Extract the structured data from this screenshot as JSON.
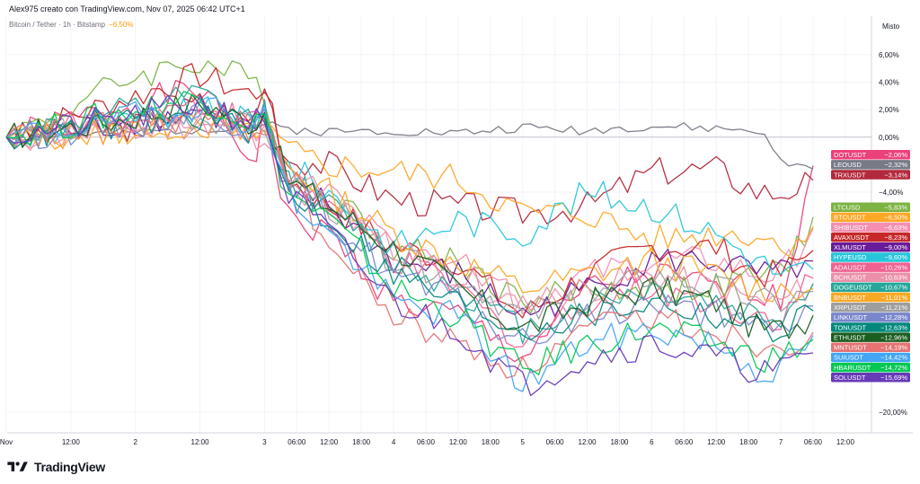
{
  "header": {
    "text": "Alex975 creato con TradingView.com, Nov 07, 2025 06:42 UTC+1"
  },
  "legend": {
    "symbol": "Bitcoin / Tether · 1h · Bitstamp",
    "change": "−6,50%"
  },
  "scale_mode": "Misto",
  "brand": {
    "name": "TradingView"
  },
  "chart_data": {
    "type": "line",
    "title": "",
    "xlabel": "",
    "ylabel": "",
    "ylim": [
      -21.5,
      8.8
    ],
    "grid": true,
    "x_ticks": [
      "Nov",
      "12:00",
      "2",
      "12:00",
      "3",
      "06:00",
      "12:00",
      "18:00",
      "4",
      "06:00",
      "12:00",
      "18:00",
      "5",
      "06:00",
      "12:00",
      "18:00",
      "6",
      "06:00",
      "12:00",
      "18:00",
      "7",
      "06:00",
      "12:00"
    ],
    "x_tick_hours": [
      0,
      12,
      24,
      36,
      48,
      54,
      60,
      66,
      72,
      78,
      84,
      90,
      96,
      102,
      108,
      114,
      120,
      126,
      132,
      138,
      144,
      150,
      156
    ],
    "y_ticks": [
      {
        "value": 6,
        "label": "6,00%"
      },
      {
        "value": 4,
        "label": "4,00%"
      },
      {
        "value": 2,
        "label": "2,00%"
      },
      {
        "value": 0,
        "label": "0,00%"
      },
      {
        "value": -4,
        "label": "−4,00%"
      },
      {
        "value": -20,
        "label": "−20,00%"
      }
    ],
    "hours_anchor": [
      0,
      24,
      36,
      46,
      48,
      52,
      60,
      72,
      84,
      96,
      108,
      120,
      132,
      140,
      144,
      150
    ],
    "series": [
      {
        "name": "DOTUSDT",
        "color": "#ec407a",
        "label": "−2,06%",
        "final": -2.06,
        "path": [
          0,
          2.5,
          3.5,
          -2,
          2,
          -6,
          -7,
          -12,
          -13,
          -16,
          -11,
          -10,
          -11,
          -11,
          -12,
          -2.06
        ]
      },
      {
        "name": "LEOUSD",
        "color": "#787b86",
        "label": "−2,32%",
        "final": -2.32,
        "path": [
          0,
          0.3,
          0.6,
          0.8,
          0.9,
          0.6,
          0.4,
          0.5,
          0.3,
          0.7,
          0.5,
          0.8,
          0.6,
          0.5,
          -1.8,
          -2.32
        ]
      },
      {
        "name": "TRXUSDT",
        "color": "#b2283c",
        "label": "−3,14%",
        "final": -3.14,
        "path": [
          0,
          0.8,
          2.5,
          1,
          4,
          -1.5,
          -2,
          -4.5,
          -5,
          -5.5,
          -5,
          -2.5,
          -2.3,
          -4,
          -4,
          -3.14
        ]
      },
      {
        "name": "LTCUSD",
        "color": "#7cb342",
        "label": "−5,83%",
        "final": -5.83,
        "path": [
          0,
          4.5,
          5.5,
          4,
          3.5,
          -3,
          -4,
          -8,
          -9,
          -12,
          -11,
          -11,
          -11,
          -10,
          -10,
          -5.83
        ]
      },
      {
        "name": "BTCUSDT",
        "color": "#ffa726",
        "label": "−6,50%",
        "final": -6.5,
        "path": [
          0,
          0.5,
          1,
          0.5,
          0.8,
          -1,
          -2,
          -2.5,
          -3,
          -5.5,
          -5.5,
          -7.5,
          -7,
          -7,
          -8,
          -6.5
        ]
      },
      {
        "name": "SHIBUSDT",
        "color": "#f48fb1",
        "label": "−6,63%",
        "final": -6.63,
        "path": [
          0,
          0.5,
          1,
          0.5,
          1,
          -3,
          -5,
          -8,
          -10,
          -12,
          -10,
          -9,
          -9,
          -10,
          -10,
          -6.63
        ]
      },
      {
        "name": "AVAXUSDT",
        "color": "#c62828",
        "label": "−8,23%",
        "final": -8.23,
        "path": [
          0,
          3,
          4.5,
          3,
          4,
          -3,
          -5,
          -8,
          -9,
          -13,
          -10,
          -8,
          -8,
          -10,
          -10,
          -8.23
        ]
      },
      {
        "name": "XLMUSDT",
        "color": "#6a1b9a",
        "label": "−9,00%",
        "final": -9.0,
        "path": [
          0,
          1,
          2,
          0.5,
          0.8,
          -3,
          -5,
          -9,
          -10,
          -13,
          -11,
          -9,
          -9,
          -10,
          -10,
          -9.0
        ]
      },
      {
        "name": "HYPEUSD",
        "color": "#26c6da",
        "label": "−9,60%",
        "final": -9.6,
        "path": [
          0,
          1,
          2,
          1,
          1.5,
          -2,
          -4,
          -8,
          -6,
          -7,
          -4,
          -5,
          -7,
          -9,
          -10,
          -9.6
        ]
      },
      {
        "name": "ADAUSDT",
        "color": "#f06292",
        "label": "−10,26%",
        "final": -10.26,
        "path": [
          0,
          1.5,
          2.5,
          1,
          1.5,
          -3,
          -5,
          -9,
          -11,
          -15,
          -12,
          -11,
          -12,
          -13,
          -13,
          -10.26
        ]
      },
      {
        "name": "BCHUSDT",
        "color": "#ec8fa8",
        "label": "−10,63%",
        "final": -10.63,
        "path": [
          0,
          0.5,
          1,
          0,
          0.5,
          -3,
          -4,
          -8,
          -9,
          -12,
          -11,
          -10,
          -11,
          -12,
          -12,
          -10.63
        ]
      },
      {
        "name": "DOGEUSDT",
        "color": "#26a69a",
        "label": "−10,67%",
        "final": -10.67,
        "path": [
          0,
          2,
          3,
          1,
          2,
          -3,
          -5,
          -9,
          -11,
          -14,
          -12,
          -11,
          -12,
          -13,
          -13,
          -10.67
        ]
      },
      {
        "name": "BNBUSDT",
        "color": "#f9a825",
        "label": "−11,01%",
        "final": -11.01,
        "path": [
          0,
          0.5,
          1,
          0,
          0.5,
          -2,
          -4,
          -7,
          -9,
          -11,
          -10,
          -9,
          -10,
          -11,
          -11,
          -11.01
        ]
      },
      {
        "name": "XRPUSDT",
        "color": "#9e9e9e",
        "label": "−11,21%",
        "final": -11.21,
        "path": [
          0,
          1,
          1.5,
          0.5,
          1,
          -3,
          -5,
          -9,
          -10,
          -13,
          -12,
          -10,
          -11,
          -12,
          -12,
          -11.21
        ]
      },
      {
        "name": "LINKUSDT",
        "color": "#7986cb",
        "label": "−12,28%",
        "final": -12.28,
        "path": [
          0,
          1,
          2,
          0.5,
          1,
          -4,
          -6,
          -10,
          -12,
          -15,
          -13,
          -12,
          -13,
          -14,
          -14,
          -12.28
        ]
      },
      {
        "name": "TONUSDT",
        "color": "#00897b",
        "label": "−12,63%",
        "final": -12.63,
        "path": [
          0,
          1,
          1.5,
          0.5,
          1,
          -4,
          -6,
          -10,
          -12,
          -14,
          -13,
          -12,
          -13,
          -14,
          -14,
          -12.63
        ]
      },
      {
        "name": "ETHUSDT",
        "color": "#1b5e20",
        "label": "−12,96%",
        "final": -12.96,
        "path": [
          0,
          1.5,
          2.5,
          1,
          2,
          -3,
          -5,
          -8,
          -11,
          -14,
          -12,
          -11,
          -12,
          -14,
          -14,
          -12.96
        ]
      },
      {
        "name": "MNTUSDT",
        "color": "#e57373",
        "label": "−14,19%",
        "final": -14.19,
        "path": [
          0,
          1,
          1.5,
          0.5,
          1,
          -2,
          -8,
          -13,
          -15,
          -17,
          -14,
          -13,
          -14,
          -15,
          -15,
          -14.19
        ]
      },
      {
        "name": "SUIUSDT",
        "color": "#42a5f5",
        "label": "−14,42%",
        "final": -14.42,
        "path": [
          0,
          1.5,
          2.5,
          1,
          1.5,
          -4,
          -7,
          -12,
          -13,
          -18,
          -15,
          -14,
          -15,
          -17,
          -17,
          -14.42
        ]
      },
      {
        "name": "HBARUSDT",
        "color": "#00c853",
        "label": "−14,72%",
        "final": -14.72,
        "path": [
          0,
          2,
          3,
          1,
          1.5,
          -4,
          -6,
          -11,
          -13,
          -17,
          -15,
          -14,
          -15,
          -16,
          -16,
          -14.72
        ]
      },
      {
        "name": "SOLUSDT",
        "color": "#673ab7",
        "label": "−15,69%",
        "final": -15.69,
        "path": [
          0,
          1.5,
          2.5,
          1,
          1.5,
          -4,
          -7,
          -12,
          -14,
          -18,
          -16,
          -15,
          -16,
          -17,
          -17,
          -15.69
        ]
      }
    ]
  }
}
